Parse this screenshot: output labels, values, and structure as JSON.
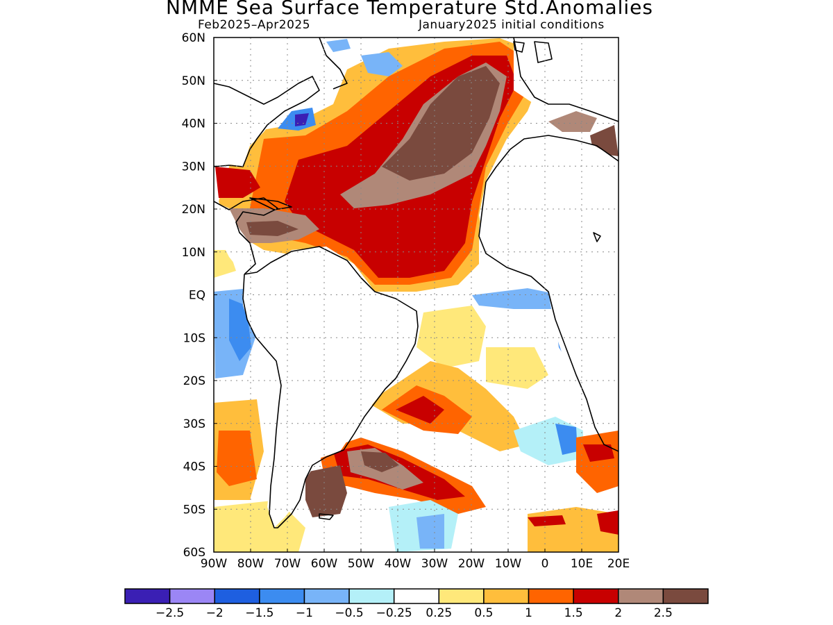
{
  "title": "NMME Sea Surface Temperature Std.Anomalies",
  "subtitle_left": "Feb2025–Apr2025",
  "subtitle_right": "January2025 initial conditions",
  "map": {
    "lat_ticks": [
      "60N",
      "50N",
      "40N",
      "30N",
      "20N",
      "10N",
      "EQ",
      "10S",
      "20S",
      "30S",
      "40S",
      "50S",
      "60S"
    ],
    "lon_ticks": [
      "90W",
      "80W",
      "70W",
      "60W",
      "50W",
      "40W",
      "30W",
      "20W",
      "10W",
      "0",
      "10E",
      "20E"
    ],
    "lat_range": [
      -60,
      60
    ],
    "lon_range": [
      -90,
      20
    ],
    "grid": "dotted"
  },
  "colorbar": {
    "colors": [
      "#3a1fb4",
      "#9b86f5",
      "#1e5fe0",
      "#3c8cf0",
      "#78b4f8",
      "#b4f0f8",
      "#ffffff",
      "#ffe87a",
      "#ffbe3c",
      "#ff6400",
      "#c80000",
      "#b08878",
      "#7a4a3e"
    ],
    "labels": [
      "−2.5",
      "−2",
      "−1.5",
      "−1",
      "−0.5",
      "−0.25",
      "0.25",
      "0.5",
      "1",
      "1.5",
      "2",
      "2.5"
    ]
  },
  "chart_data": {
    "type": "heatmap",
    "title": "NMME Sea Surface Temperature Std.Anomalies",
    "period": "Feb2025–Apr2025",
    "initial_conditions": "January2025 initial conditions",
    "xlabel": "",
    "ylabel": "",
    "xlim": [
      -90,
      20
    ],
    "ylim": [
      -60,
      60
    ],
    "levels": [
      -2.5,
      -2,
      -1.5,
      -1,
      -0.5,
      -0.25,
      0.25,
      0.5,
      1,
      1.5,
      2,
      2.5
    ],
    "regions": [
      {
        "lon_min": -55,
        "lon_max": -15,
        "lat_min": 25,
        "lat_max": 55,
        "anomaly": 2.5
      },
      {
        "lon_min": -75,
        "lon_max": -25,
        "lat_min": 10,
        "lat_max": 25,
        "anomaly": 2.0
      },
      {
        "lon_min": -45,
        "lon_max": -15,
        "lat_min": 0,
        "lat_max": 10,
        "anomaly": 2.0
      },
      {
        "lon_min": -70,
        "lon_max": -60,
        "lat_min": 38,
        "lat_max": 42,
        "anomaly": -1.5
      },
      {
        "lon_min": -50,
        "lon_max": -40,
        "lat_min": 52,
        "lat_max": 58,
        "anomaly": -1.0
      },
      {
        "lon_min": -25,
        "lon_max": 15,
        "lat_min": -12,
        "lat_max": 0,
        "anomaly": -0.5
      },
      {
        "lon_min": 5,
        "lon_max": 12,
        "lat_min": -15,
        "lat_max": -5,
        "anomaly": -1.0
      },
      {
        "lon_min": -45,
        "lon_max": -20,
        "lat_min": -35,
        "lat_max": -20,
        "anomaly": 1.5
      },
      {
        "lon_min": -65,
        "lon_max": -30,
        "lat_min": -50,
        "lat_max": -38,
        "anomaly": 2.5
      },
      {
        "lon_min": -90,
        "lon_max": -75,
        "lat_min": -50,
        "lat_max": -30,
        "anomaly": 1.0
      },
      {
        "lon_min": -35,
        "lon_max": -25,
        "lat_min": -58,
        "lat_max": -50,
        "anomaly": -1.0
      },
      {
        "lon_min": 10,
        "lon_max": 20,
        "lat_min": -55,
        "lat_max": -35,
        "anomaly": 1.5
      },
      {
        "lon_min": -90,
        "lon_max": -80,
        "lat_min": -20,
        "lat_max": 0,
        "anomaly": -0.5
      }
    ]
  }
}
